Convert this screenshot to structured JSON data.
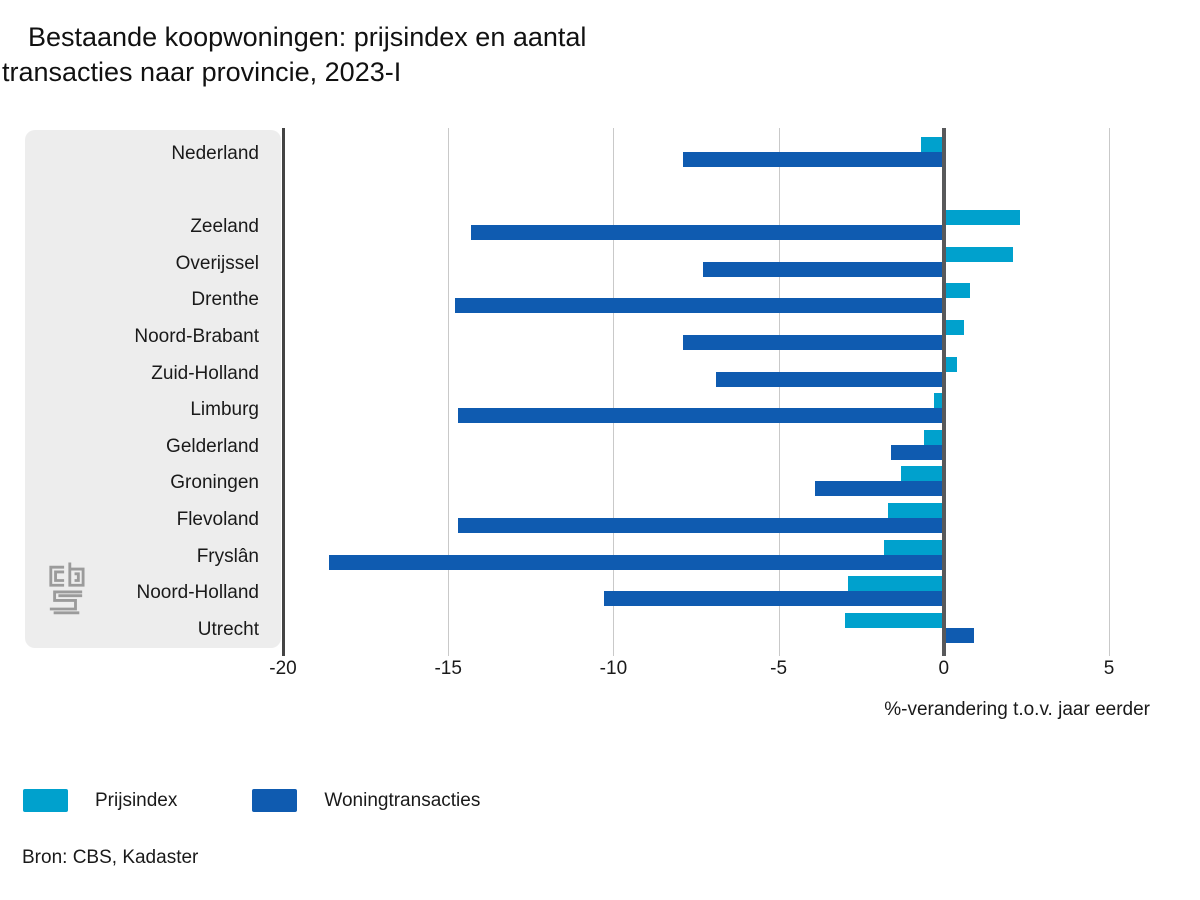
{
  "title": {
    "line1": "Bestaande koopwoningen: prijsindex en aantal",
    "line2": "transacties naar provincie, 2023-I"
  },
  "chart_data": {
    "type": "bar",
    "orientation": "horizontal",
    "categories": [
      "Nederland",
      "Zeeland",
      "Overijssel",
      "Drenthe",
      "Noord-Brabant",
      "Zuid-Holland",
      "Limburg",
      "Gelderland",
      "Groningen",
      "Flevoland",
      "Fryslân",
      "Noord-Holland",
      "Utrecht"
    ],
    "gap_after_first": true,
    "series": [
      {
        "name": "Prijsindex",
        "color": "#00a1cd",
        "values": [
          -0.7,
          2.3,
          2.1,
          0.8,
          0.6,
          0.4,
          -0.3,
          -0.6,
          -1.3,
          -1.7,
          -1.8,
          -2.9,
          -3.0
        ]
      },
      {
        "name": "Woningtransacties",
        "color": "#0f5bb0",
        "values": [
          -7.9,
          -14.3,
          -7.3,
          -14.8,
          -7.9,
          -6.9,
          -14.7,
          -1.6,
          -3.9,
          -14.7,
          -18.6,
          -10.3,
          0.9
        ]
      }
    ],
    "xlabel": "%-verandering t.o.v. jaar eerder",
    "xticks": [
      -20,
      -15,
      -10,
      -5,
      0,
      5
    ],
    "xlim": [
      -20,
      7.45
    ],
    "grid": true,
    "legend_position": "bottom"
  },
  "source": "Bron: CBS, Kadaster",
  "icons": {
    "logo": "cbs-logo"
  },
  "colors": {
    "panel": "#ededed",
    "gridline": "#c9c9c9",
    "zero_line": "#58595b",
    "axis_line": "#444444"
  }
}
